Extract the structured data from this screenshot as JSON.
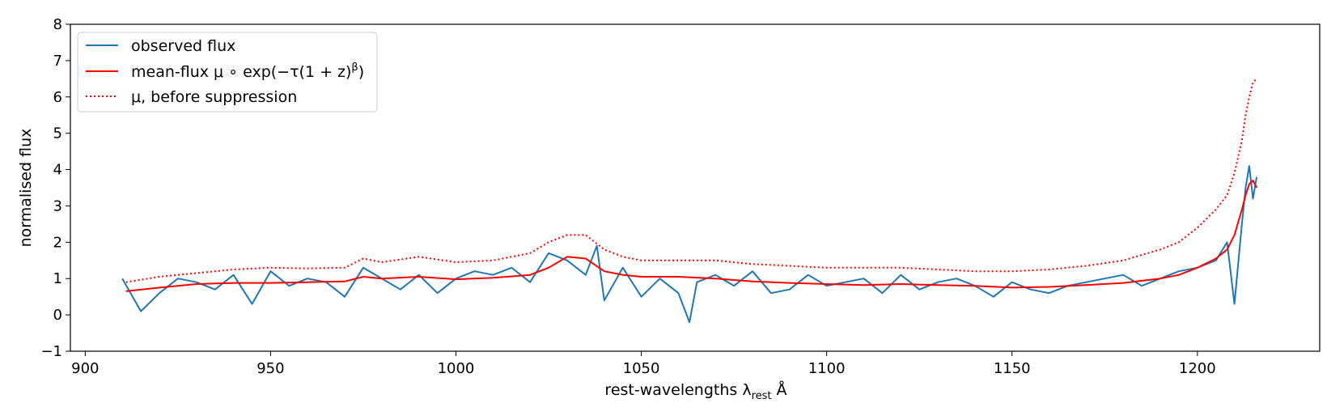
{
  "chart_data": {
    "type": "line",
    "title": "",
    "xlabel": "rest-wavelengths λrest Å",
    "xlabel_parts": {
      "main": "rest-wavelengths λ",
      "sub": "rest",
      "tail": " Å"
    },
    "ylabel": "normalised flux",
    "xlim": [
      896,
      1233
    ],
    "ylim": [
      -1,
      8
    ],
    "xticks": [
      900,
      950,
      1000,
      1050,
      1100,
      1150,
      1200
    ],
    "yticks": [
      -1,
      0,
      1,
      2,
      3,
      4,
      5,
      6,
      7,
      8
    ],
    "xtick_labels": [
      "900",
      "950",
      "1000",
      "1050",
      "1100",
      "1150",
      "1200"
    ],
    "ytick_labels": [
      "−1",
      "0",
      "1",
      "2",
      "3",
      "4",
      "5",
      "6",
      "7",
      "8"
    ],
    "legend_position": "top-left",
    "series": [
      {
        "name": "observed flux",
        "legend_label": "observed flux",
        "color": "#1f77b4",
        "style": "solid",
        "x": [
          910,
          915,
          920,
          925,
          930,
          935,
          940,
          945,
          950,
          955,
          960,
          965,
          970,
          975,
          980,
          985,
          990,
          995,
          1000,
          1005,
          1010,
          1015,
          1020,
          1025,
          1030,
          1035,
          1038,
          1040,
          1045,
          1050,
          1055,
          1060,
          1063,
          1065,
          1070,
          1075,
          1080,
          1085,
          1090,
          1095,
          1100,
          1105,
          1110,
          1115,
          1120,
          1125,
          1130,
          1135,
          1140,
          1145,
          1150,
          1155,
          1160,
          1165,
          1170,
          1175,
          1180,
          1185,
          1190,
          1195,
          1200,
          1205,
          1208,
          1210,
          1212,
          1213,
          1214,
          1215,
          1216
        ],
        "values": [
          1.0,
          0.1,
          0.6,
          1.0,
          0.9,
          0.7,
          1.1,
          0.3,
          1.2,
          0.8,
          1.0,
          0.9,
          0.5,
          1.3,
          1.0,
          0.7,
          1.1,
          0.6,
          1.0,
          1.2,
          1.1,
          1.3,
          0.9,
          1.7,
          1.5,
          1.1,
          1.9,
          0.4,
          1.3,
          0.5,
          1.0,
          0.6,
          -0.2,
          0.9,
          1.1,
          0.8,
          1.2,
          0.6,
          0.7,
          1.1,
          0.8,
          0.9,
          1.0,
          0.6,
          1.1,
          0.7,
          0.9,
          1.0,
          0.8,
          0.5,
          0.9,
          0.7,
          0.6,
          0.8,
          0.9,
          1.0,
          1.1,
          0.8,
          1.0,
          1.2,
          1.3,
          1.5,
          2.0,
          0.3,
          2.5,
          3.5,
          4.1,
          3.2,
          3.8
        ]
      },
      {
        "name": "mean-flux",
        "legend_label": "mean-flux μ ∘ exp(−τ(1 + z)β)",
        "legend_parts": {
          "pre": "mean-flux μ ∘ exp(−τ(1 + z)",
          "sup": "β",
          "post": ")"
        },
        "color": "#ff0000",
        "style": "solid",
        "x": [
          911,
          920,
          930,
          940,
          950,
          960,
          970,
          975,
          980,
          990,
          1000,
          1010,
          1020,
          1025,
          1030,
          1035,
          1040,
          1045,
          1050,
          1060,
          1070,
          1080,
          1090,
          1100,
          1110,
          1120,
          1130,
          1140,
          1150,
          1160,
          1170,
          1180,
          1190,
          1195,
          1200,
          1205,
          1208,
          1210,
          1212,
          1213,
          1214,
          1215,
          1216
        ],
        "values": [
          0.65,
          0.75,
          0.85,
          0.88,
          0.88,
          0.9,
          0.92,
          1.05,
          1.0,
          1.05,
          0.98,
          1.02,
          1.1,
          1.3,
          1.6,
          1.55,
          1.2,
          1.1,
          1.05,
          1.05,
          1.0,
          0.92,
          0.88,
          0.85,
          0.82,
          0.85,
          0.82,
          0.8,
          0.75,
          0.77,
          0.82,
          0.88,
          1.0,
          1.1,
          1.3,
          1.55,
          1.8,
          2.2,
          2.9,
          3.3,
          3.6,
          3.7,
          3.5
        ]
      },
      {
        "name": "mu-before-suppression",
        "legend_label": "μ, before suppression",
        "color": "#ff0000",
        "style": "dotted",
        "x": [
          911,
          920,
          930,
          940,
          950,
          960,
          970,
          975,
          980,
          990,
          1000,
          1010,
          1020,
          1025,
          1030,
          1035,
          1040,
          1045,
          1050,
          1060,
          1070,
          1080,
          1090,
          1100,
          1110,
          1120,
          1130,
          1140,
          1150,
          1160,
          1170,
          1180,
          1190,
          1195,
          1200,
          1205,
          1208,
          1210,
          1212,
          1213,
          1214,
          1215,
          1216
        ],
        "values": [
          0.9,
          1.05,
          1.15,
          1.25,
          1.3,
          1.28,
          1.3,
          1.55,
          1.45,
          1.6,
          1.45,
          1.5,
          1.7,
          2.0,
          2.2,
          2.2,
          1.8,
          1.6,
          1.5,
          1.5,
          1.5,
          1.4,
          1.35,
          1.3,
          1.3,
          1.3,
          1.25,
          1.2,
          1.2,
          1.25,
          1.35,
          1.5,
          1.8,
          2.0,
          2.4,
          2.9,
          3.3,
          3.9,
          4.8,
          5.5,
          6.0,
          6.4,
          6.5
        ]
      }
    ]
  }
}
